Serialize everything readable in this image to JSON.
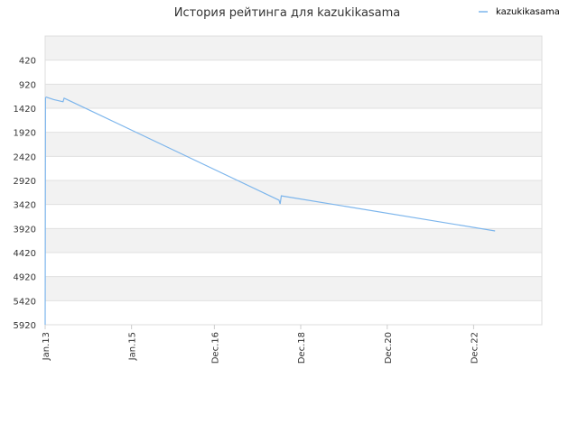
{
  "chart_data": {
    "type": "line",
    "title": "История рейтинга для kazukikasama",
    "xlabel": "",
    "ylabel": "",
    "y_inverted": true,
    "ylim": [
      -80,
      5920
    ],
    "xlim": [
      "2013-01-01",
      "2024-06-30"
    ],
    "grid": true,
    "legend_position": "top-right",
    "y_ticks": [
      420,
      920,
      1420,
      1920,
      2420,
      2920,
      3420,
      3920,
      4420,
      4920,
      5420,
      5920
    ],
    "x_ticks": [
      {
        "label": "Jan.13",
        "date": "2013-01-01"
      },
      {
        "label": "Jan.15",
        "date": "2015-01-01"
      },
      {
        "label": "Dec.16",
        "date": "2016-12-01"
      },
      {
        "label": "Dec.18",
        "date": "2018-12-01"
      },
      {
        "label": "Dec.20",
        "date": "2020-12-01"
      },
      {
        "label": "Dec.22",
        "date": "2022-12-01"
      }
    ],
    "series": [
      {
        "name": "kazukikasama",
        "color": "#7cb5ec",
        "points": [
          {
            "x": "2013-01-01",
            "y": 5920
          },
          {
            "x": "2013-01-04",
            "y": 1200
          },
          {
            "x": "2013-01-10",
            "y": 1190
          },
          {
            "x": "2013-03-15",
            "y": 1240
          },
          {
            "x": "2013-06-01",
            "y": 1285
          },
          {
            "x": "2013-06-10",
            "y": 1210
          },
          {
            "x": "2013-07-15",
            "y": 1250
          },
          {
            "x": "2018-06-01",
            "y": 3330
          },
          {
            "x": "2018-06-10",
            "y": 3410
          },
          {
            "x": "2018-06-20",
            "y": 3240
          },
          {
            "x": "2023-06-01",
            "y": 3970
          }
        ]
      }
    ]
  }
}
